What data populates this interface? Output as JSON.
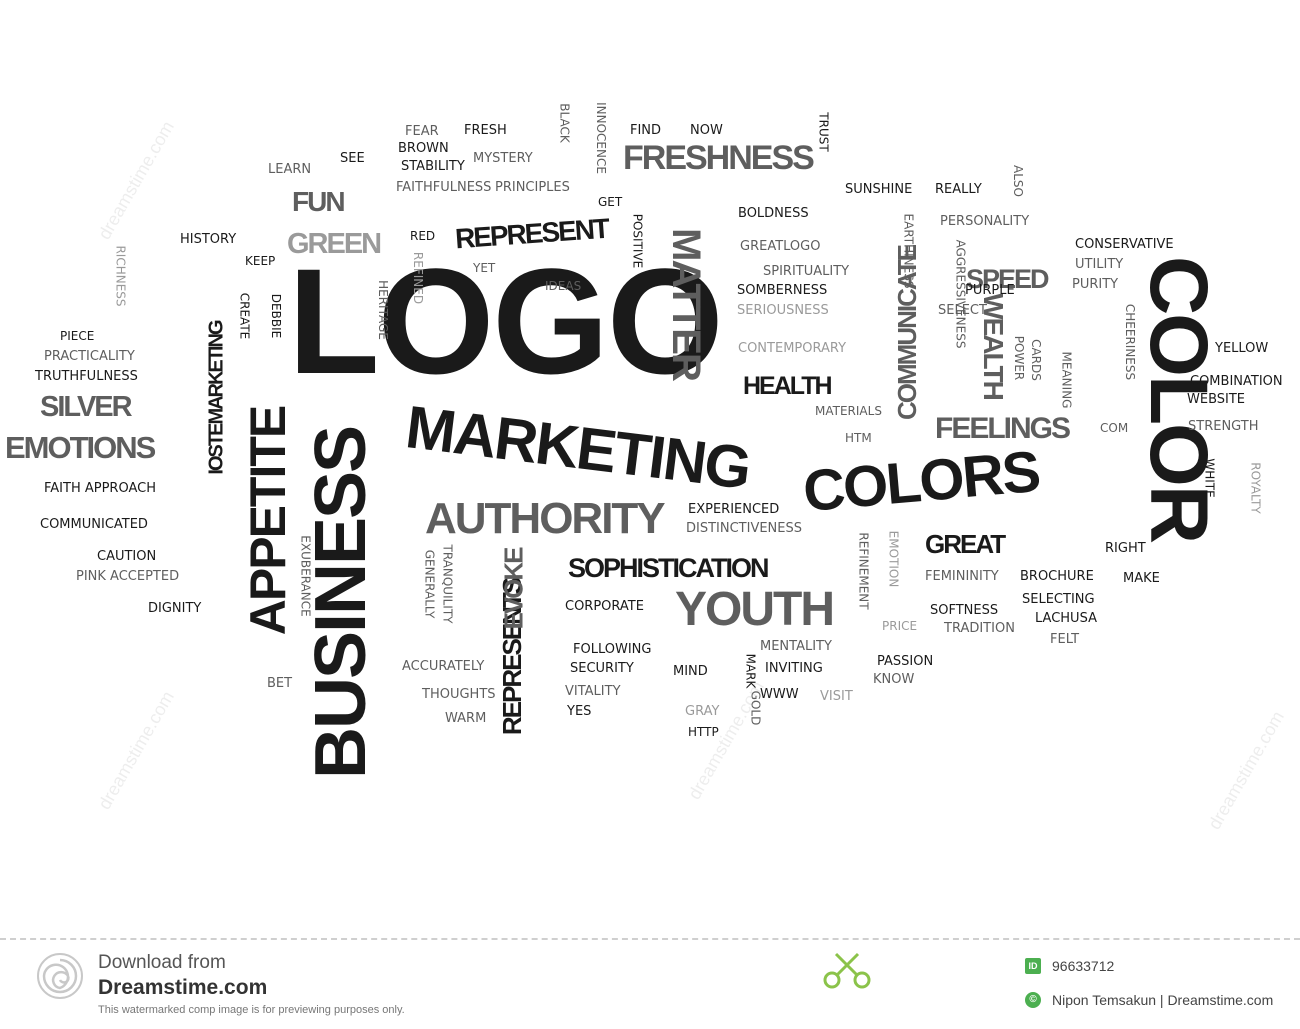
{
  "words": {
    "logo": "LOGO",
    "color": "COLOR",
    "business": "BUSINESS",
    "marketing": "MARKETING",
    "colors": "COLORS",
    "appetite": "APPETITE",
    "authority": "AUTHORITY",
    "youth": "YOUTH",
    "freshness": "FRESHNESS",
    "matter": "MATTER",
    "represent": "REPRESENT",
    "sophistication": "SOPHISTICATION",
    "feelings": "FEELINGS",
    "emotions": "EMOTIONS",
    "silver": "SILVER",
    "green": "GREEN",
    "fun": "FUN",
    "represents": "REPRESENTS",
    "communicate": "COMMUNICATE",
    "wealth": "WEALTH",
    "speed": "SPEED",
    "health": "HEALTH",
    "great": "GREAT",
    "evoke": "EVOKE",
    "iostemarketing": "IOSTEMARKETING",
    "fear": "FEAR",
    "fresh": "FRESH",
    "brown": "BROWN",
    "mystery": "MYSTERY",
    "learn": "LEARN",
    "see": "SEE",
    "stability": "STABILITY",
    "black": "BLACK",
    "innocence": "INNOCENCE",
    "find": "FIND",
    "now": "NOW",
    "trust": "TRUST",
    "faithfulness": "FAITHFULNESS",
    "principles": "PRINCIPLES",
    "get": "GET",
    "sunshine": "SUNSHINE",
    "really": "REALLY",
    "also": "ALSO",
    "boldness": "BOLDNESS",
    "positive": "POSITIVE",
    "history": "HISTORY",
    "red": "RED",
    "personality": "PERSONALITY",
    "greatlogo": "GREATLOGO",
    "earthiness": "EARTHINESS",
    "conservative": "CONSERVATIVE",
    "keep": "KEEP",
    "yet": "YET",
    "spirituality": "SPIRITUALITY",
    "utility": "UTILITY",
    "richness": "RICHNESS",
    "ideas": "IDEAS",
    "somberness": "SOMBERNESS",
    "purple": "PURPLE",
    "aggressiveness": "AGGRESSIVENESS",
    "purity": "PURITY",
    "heritage": "HERITAGE",
    "refined": "REFINED",
    "seriousness": "SERIOUSNESS",
    "select": "SELECT",
    "piece": "PIECE",
    "create": "CREATE",
    "debbie": "DEBBIE",
    "cheeriness": "CHEERINESS",
    "practicality": "PRACTICALITY",
    "contemporary": "CONTEMPORARY",
    "power": "POWER",
    "cards": "CARDS",
    "yellow": "YELLOW",
    "truthfulness": "TRUTHFULNESS",
    "meaning": "MEANING",
    "combination": "COMBINATION",
    "website": "WEBSITE",
    "materials": "MATERIALS",
    "htm": "HTM",
    "com": "COM",
    "strength": "STRENGTH",
    "faith_approach": "FAITH APPROACH",
    "white": "WHITE",
    "royalty": "ROYALTY",
    "experienced": "EXPERIENCED",
    "communicated": "COMMUNICATED",
    "distinctiveness": "DISTINCTIVENESS",
    "right": "RIGHT",
    "caution": "CAUTION",
    "emotion": "EMOTION",
    "refinement": "REFINEMENT",
    "pink_accepted": "PINK ACCEPTED",
    "exuberance": "EXUBERANCE",
    "generally": "GENERALLY",
    "tranquility": "TRANQUILITY",
    "femininity": "FEMININITY",
    "brochure": "BROCHURE",
    "make": "MAKE",
    "dignity": "DIGNITY",
    "corporate": "CORPORATE",
    "selecting": "SELECTING",
    "softness": "SOFTNESS",
    "lachusa": "LACHUSA",
    "price": "PRICE",
    "tradition": "TRADITION",
    "following": "FOLLOWING",
    "mentality": "MENTALITY",
    "felt": "FELT",
    "passion": "PASSION",
    "accurately": "ACCURATELY",
    "security": "SECURITY",
    "mind": "MIND",
    "inviting": "INVITING",
    "mark": "MARK",
    "know": "KNOW",
    "bet": "BET",
    "vitality": "VITALITY",
    "www": "WWW",
    "visit": "VISIT",
    "thoughts": "THOUGHTS",
    "gold": "GOLD",
    "yes": "YES",
    "gray": "GRAY",
    "warm": "WARM",
    "http": "HTTP"
  },
  "footer": {
    "download_from": "Download from",
    "site": "Dreamstime.com",
    "note": "This watermarked comp image is for previewing purposes only.",
    "id_badge": "ID",
    "id_value": "96633712",
    "copyright_symbol": "©",
    "credit": "Nipon Temsakun | Dreamstime.com",
    "watermark": "dreamstime.com"
  },
  "colors": {
    "dark": "#1a1a1a",
    "mid": "#5e5e5e",
    "light": "#9a9a9a",
    "accent": "#4caf50"
  }
}
